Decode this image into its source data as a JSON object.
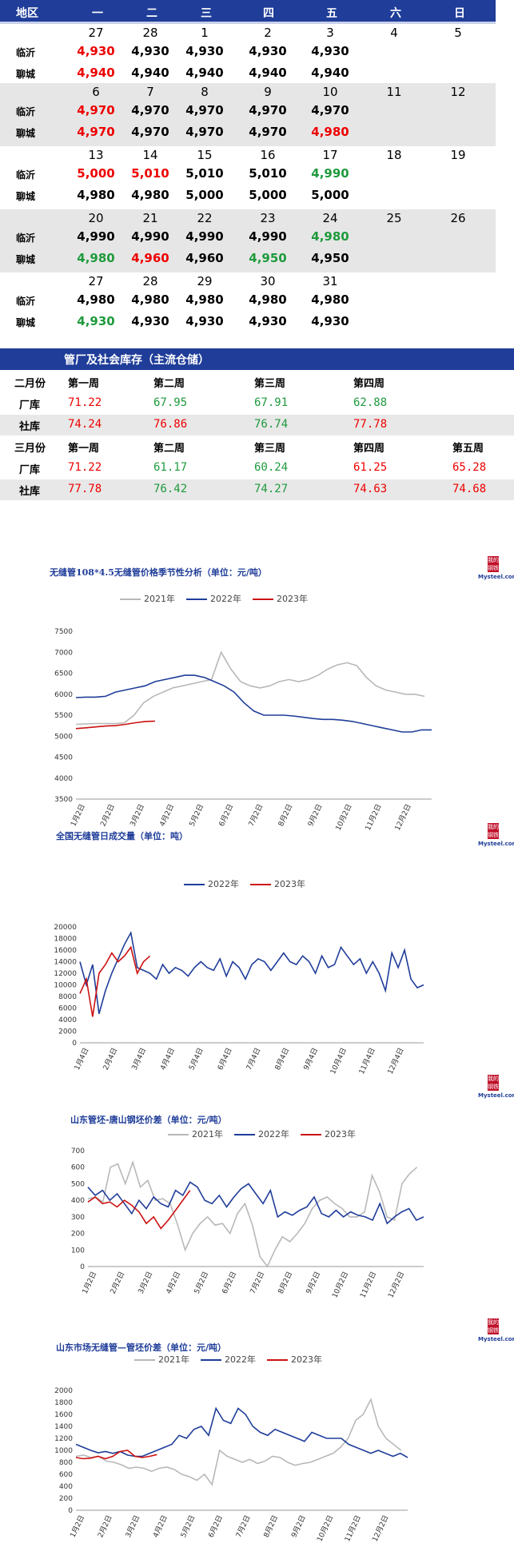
{
  "calendar": {
    "headers": [
      "地区",
      "一",
      "二",
      "三",
      "四",
      "五",
      "六",
      "日"
    ],
    "weeks": [
      {
        "dates": [
          "27",
          "28",
          "1",
          "2",
          "3",
          "4",
          "5"
        ],
        "rows": [
          {
            "label": "临沂",
            "values": [
              [
                "4,930",
                "red"
              ],
              [
                "4,930",
                "blk"
              ],
              [
                "4,930",
                "blk"
              ],
              [
                "4,930",
                "blk"
              ],
              [
                "4,930",
                "blk"
              ]
            ]
          },
          {
            "label": "聊城",
            "values": [
              [
                "4,940",
                "red"
              ],
              [
                "4,940",
                "blk"
              ],
              [
                "4,940",
                "blk"
              ],
              [
                "4,940",
                "blk"
              ],
              [
                "4,940",
                "blk"
              ]
            ]
          }
        ]
      },
      {
        "dates": [
          "6",
          "7",
          "8",
          "9",
          "10",
          "11",
          "12"
        ],
        "rows": [
          {
            "label": "临沂",
            "values": [
              [
                "4,970",
                "red"
              ],
              [
                "4,970",
                "blk"
              ],
              [
                "4,970",
                "blk"
              ],
              [
                "4,970",
                "blk"
              ],
              [
                "4,970",
                "blk"
              ]
            ]
          },
          {
            "label": "聊城",
            "values": [
              [
                "4,970",
                "red"
              ],
              [
                "4,970",
                "blk"
              ],
              [
                "4,970",
                "blk"
              ],
              [
                "4,970",
                "blk"
              ],
              [
                "4,980",
                "red"
              ]
            ]
          }
        ]
      },
      {
        "dates": [
          "13",
          "14",
          "15",
          "16",
          "17",
          "18",
          "19"
        ],
        "rows": [
          {
            "label": "临沂",
            "values": [
              [
                "5,000",
                "red"
              ],
              [
                "5,010",
                "red"
              ],
              [
                "5,010",
                "blk"
              ],
              [
                "5,010",
                "blk"
              ],
              [
                "4,990",
                "grn"
              ]
            ]
          },
          {
            "label": "聊城",
            "values": [
              [
                "4,980",
                "blk"
              ],
              [
                "4,980",
                "blk"
              ],
              [
                "5,000",
                "blk"
              ],
              [
                "5,000",
                "blk"
              ],
              [
                "5,000",
                "blk"
              ]
            ]
          }
        ]
      },
      {
        "dates": [
          "20",
          "21",
          "22",
          "23",
          "24",
          "25",
          "26"
        ],
        "rows": [
          {
            "label": "临沂",
            "values": [
              [
                "4,990",
                "blk"
              ],
              [
                "4,990",
                "blk"
              ],
              [
                "4,990",
                "blk"
              ],
              [
                "4,990",
                "blk"
              ],
              [
                "4,980",
                "grn"
              ]
            ]
          },
          {
            "label": "聊城",
            "values": [
              [
                "4,980",
                "grn"
              ],
              [
                "4,960",
                "red"
              ],
              [
                "4,960",
                "blk"
              ],
              [
                "4,950",
                "grn"
              ],
              [
                "4,950",
                "blk"
              ]
            ]
          }
        ]
      },
      {
        "dates": [
          "27",
          "28",
          "29",
          "30",
          "31",
          "",
          ""
        ],
        "rows": [
          {
            "label": "临沂",
            "values": [
              [
                "4,980",
                "blk"
              ],
              [
                "4,980",
                "blk"
              ],
              [
                "4,980",
                "blk"
              ],
              [
                "4,980",
                "blk"
              ],
              [
                "4,980",
                "blk"
              ]
            ]
          },
          {
            "label": "聊城",
            "values": [
              [
                "4,930",
                "grn"
              ],
              [
                "4,930",
                "blk"
              ],
              [
                "4,930",
                "blk"
              ],
              [
                "4,930",
                "blk"
              ],
              [
                "4,930",
                "blk"
              ]
            ]
          }
        ]
      }
    ]
  },
  "inventory": {
    "title": "管厂及社会库存（主流仓储）",
    "rows": [
      {
        "cells": [
          [
            "二月份",
            "h"
          ],
          [
            "第一周",
            "h"
          ],
          [
            "第二周",
            "h"
          ],
          [
            "第三周",
            "h"
          ],
          [
            "第四周",
            "h"
          ]
        ],
        "shade": false
      },
      {
        "cells": [
          [
            "厂库",
            "h"
          ],
          [
            "71.22",
            "red"
          ],
          [
            "67.95",
            "grn"
          ],
          [
            "67.91",
            "grn"
          ],
          [
            "62.88",
            "grn"
          ]
        ],
        "shade": false
      },
      {
        "cells": [
          [
            "社库",
            "h"
          ],
          [
            "74.24",
            "red"
          ],
          [
            "76.86",
            "red"
          ],
          [
            "76.74",
            "grn"
          ],
          [
            "77.78",
            "red"
          ]
        ],
        "shade": true
      },
      {
        "cells": [
          [
            "三月份",
            "h"
          ],
          [
            "第一周",
            "h"
          ],
          [
            "第二周",
            "h"
          ],
          [
            "第三周",
            "h"
          ],
          [
            "第四周",
            "h"
          ],
          [
            "第五周",
            "h"
          ]
        ],
        "shade": false
      },
      {
        "cells": [
          [
            "厂库",
            "h"
          ],
          [
            "71.22",
            "red"
          ],
          [
            "61.17",
            "grn"
          ],
          [
            "60.24",
            "grn"
          ],
          [
            "61.25",
            "red"
          ],
          [
            "65.28",
            "red"
          ]
        ],
        "shade": false
      },
      {
        "cells": [
          [
            "社库",
            "h"
          ],
          [
            "77.78",
            "red"
          ],
          [
            "76.42",
            "grn"
          ],
          [
            "74.27",
            "grn"
          ],
          [
            "74.63",
            "red"
          ],
          [
            "74.68",
            "red"
          ]
        ],
        "shade": true
      }
    ]
  },
  "colors": {
    "y2021": "#b8b8b8",
    "y2022": "#1f3d99",
    "y2023": "#cc1111"
  },
  "logo": {
    "top": "我的钢铁",
    "bottom": "Mysteel.com"
  },
  "chart_data": [
    {
      "type": "line",
      "title": "无缝管108*4.5无缝管价格季节性分析（单位：元/吨）",
      "ylim": [
        3500,
        7500
      ],
      "yticks": [
        3500,
        4000,
        4500,
        5000,
        5500,
        6000,
        6500,
        7000,
        7500
      ],
      "xticks": [
        "1月2日",
        "2月2日",
        "3月2日",
        "4月2日",
        "5月2日",
        "6月2日",
        "7月2日",
        "8月2日",
        "9月2日",
        "10月2日",
        "11月2日",
        "12月2日"
      ],
      "series": [
        {
          "name": "2021年",
          "color": "y2021",
          "values": [
            5280,
            5290,
            5300,
            5300,
            5300,
            5320,
            5500,
            5800,
            5950,
            6050,
            6150,
            6200,
            6250,
            6300,
            6350,
            7000,
            6600,
            6300,
            6200,
            6150,
            6200,
            6300,
            6350,
            6300,
            6350,
            6450,
            6600,
            6700,
            6750,
            6680,
            6400,
            6200,
            6100,
            6050,
            6000,
            6000,
            5950
          ]
        },
        {
          "name": "2022年",
          "color": "y2022",
          "values": [
            5920,
            5930,
            5930,
            5950,
            6050,
            6100,
            6150,
            6200,
            6300,
            6350,
            6400,
            6450,
            6450,
            6400,
            6300,
            6200,
            6050,
            5800,
            5600,
            5500,
            5500,
            5500,
            5480,
            5450,
            5420,
            5400,
            5400,
            5380,
            5350,
            5300,
            5250,
            5200,
            5150,
            5100,
            5100,
            5150,
            5150
          ]
        },
        {
          "name": "2023年",
          "color": "y2023",
          "values": [
            5180,
            5200,
            5220,
            5240,
            5250,
            5280,
            5320,
            5350,
            5360
          ]
        }
      ]
    },
    {
      "type": "line",
      "title": "全国无缝管日成交量（单位：吨）",
      "ylim": [
        0,
        20000
      ],
      "yticks": [
        0,
        2000,
        4000,
        6000,
        8000,
        10000,
        12000,
        14000,
        16000,
        18000,
        20000
      ],
      "xticks": [
        "1月4日",
        "2月4日",
        "3月4日",
        "4月4日",
        "5月4日",
        "6月4日",
        "7月4日",
        "8月4日",
        "9月4日",
        "10月4日",
        "11月4日",
        "12月4日"
      ],
      "series": [
        {
          "name": "2022年",
          "color": "y2022",
          "values": [
            14000,
            10000,
            13500,
            5000,
            9000,
            12000,
            14500,
            17000,
            19000,
            13000,
            12500,
            12000,
            11000,
            13500,
            12000,
            13000,
            12500,
            11500,
            13000,
            14000,
            13000,
            12500,
            14500,
            11500,
            14000,
            13000,
            11000,
            13500,
            14500,
            14000,
            12500,
            14000,
            15500,
            14000,
            13500,
            15000,
            14000,
            12000,
            15000,
            13000,
            13500,
            16500,
            15000,
            13500,
            14500,
            12000,
            14000,
            12000,
            9000,
            15500,
            13000,
            16000,
            11000,
            9500,
            10000
          ]
        },
        {
          "name": "2023年",
          "color": "y2023",
          "values": [
            8500,
            11000,
            4500,
            12000,
            13500,
            15500,
            14000,
            15000,
            16500,
            12000,
            14000,
            15000
          ]
        }
      ]
    },
    {
      "type": "line",
      "title": "山东管坯-唐山钢坯价差（单位：元/吨）",
      "ylim": [
        0,
        700
      ],
      "yticks": [
        0,
        100,
        200,
        300,
        400,
        500,
        600,
        700
      ],
      "xticks": [
        "1月2日",
        "2月2日",
        "3月2日",
        "4月2日",
        "5月2日",
        "6月2日",
        "7月2日",
        "8月2日",
        "9月2日",
        "10月2日",
        "11月2日",
        "12月2日"
      ],
      "series": [
        {
          "name": "2021年",
          "color": "y2021",
          "values": [
            410,
            420,
            390,
            600,
            620,
            500,
            630,
            480,
            520,
            400,
            410,
            380,
            250,
            100,
            200,
            260,
            300,
            250,
            260,
            200,
            320,
            380,
            250,
            60,
            0,
            100,
            180,
            150,
            200,
            260,
            350,
            400,
            420,
            380,
            350,
            300,
            300,
            330,
            550,
            450,
            300,
            280,
            500,
            560,
            600
          ]
        },
        {
          "name": "2022年",
          "color": "y2022",
          "values": [
            480,
            430,
            460,
            400,
            440,
            380,
            320,
            400,
            350,
            420,
            380,
            360,
            460,
            430,
            510,
            480,
            400,
            380,
            430,
            360,
            420,
            470,
            500,
            440,
            380,
            460,
            300,
            330,
            310,
            340,
            360,
            420,
            320,
            300,
            340,
            300,
            330,
            310,
            300,
            280,
            380,
            260,
            300,
            330,
            350,
            280,
            300
          ]
        },
        {
          "name": "2023年",
          "color": "y2023",
          "values": [
            390,
            420,
            380,
            390,
            360,
            400,
            370,
            330,
            260,
            300,
            230,
            280,
            340,
            400,
            460
          ]
        }
      ]
    },
    {
      "type": "line",
      "title": "山东市场无缝管—管坯价差（单位：元/吨）",
      "ylim": [
        0,
        2000
      ],
      "yticks": [
        0,
        200,
        400,
        600,
        800,
        1000,
        1200,
        1400,
        1600,
        1800,
        2000
      ],
      "xticks": [
        "1月2日",
        "2月2日",
        "3月2日",
        "4月2日",
        "5月2日",
        "6月2日",
        "7月2日",
        "8月2日",
        "9月2日",
        "10月2日",
        "11月2日",
        "12月2日"
      ],
      "series": [
        {
          "name": "2021年",
          "color": "y2021",
          "values": [
            900,
            920,
            880,
            900,
            820,
            800,
            760,
            700,
            720,
            700,
            650,
            700,
            720,
            680,
            600,
            560,
            500,
            600,
            430,
            1000,
            900,
            850,
            800,
            850,
            780,
            820,
            900,
            880,
            800,
            750,
            780,
            800,
            850,
            900,
            950,
            1050,
            1200,
            1500,
            1600,
            1850,
            1400,
            1200,
            1100,
            1000
          ]
        },
        {
          "name": "2022年",
          "color": "y2022",
          "values": [
            1100,
            1050,
            1000,
            960,
            980,
            950,
            980,
            920,
            900,
            900,
            950,
            1000,
            1050,
            1100,
            1250,
            1200,
            1350,
            1400,
            1250,
            1700,
            1500,
            1450,
            1700,
            1600,
            1400,
            1300,
            1250,
            1350,
            1300,
            1250,
            1200,
            1150,
            1300,
            1250,
            1200,
            1200,
            1200,
            1100,
            1050,
            1000,
            950,
            1000,
            950,
            900,
            950,
            880
          ]
        },
        {
          "name": "2023年",
          "color": "y2023",
          "values": [
            880,
            860,
            870,
            900,
            860,
            900,
            980,
            1000,
            900,
            880,
            900,
            930
          ]
        }
      ]
    }
  ]
}
